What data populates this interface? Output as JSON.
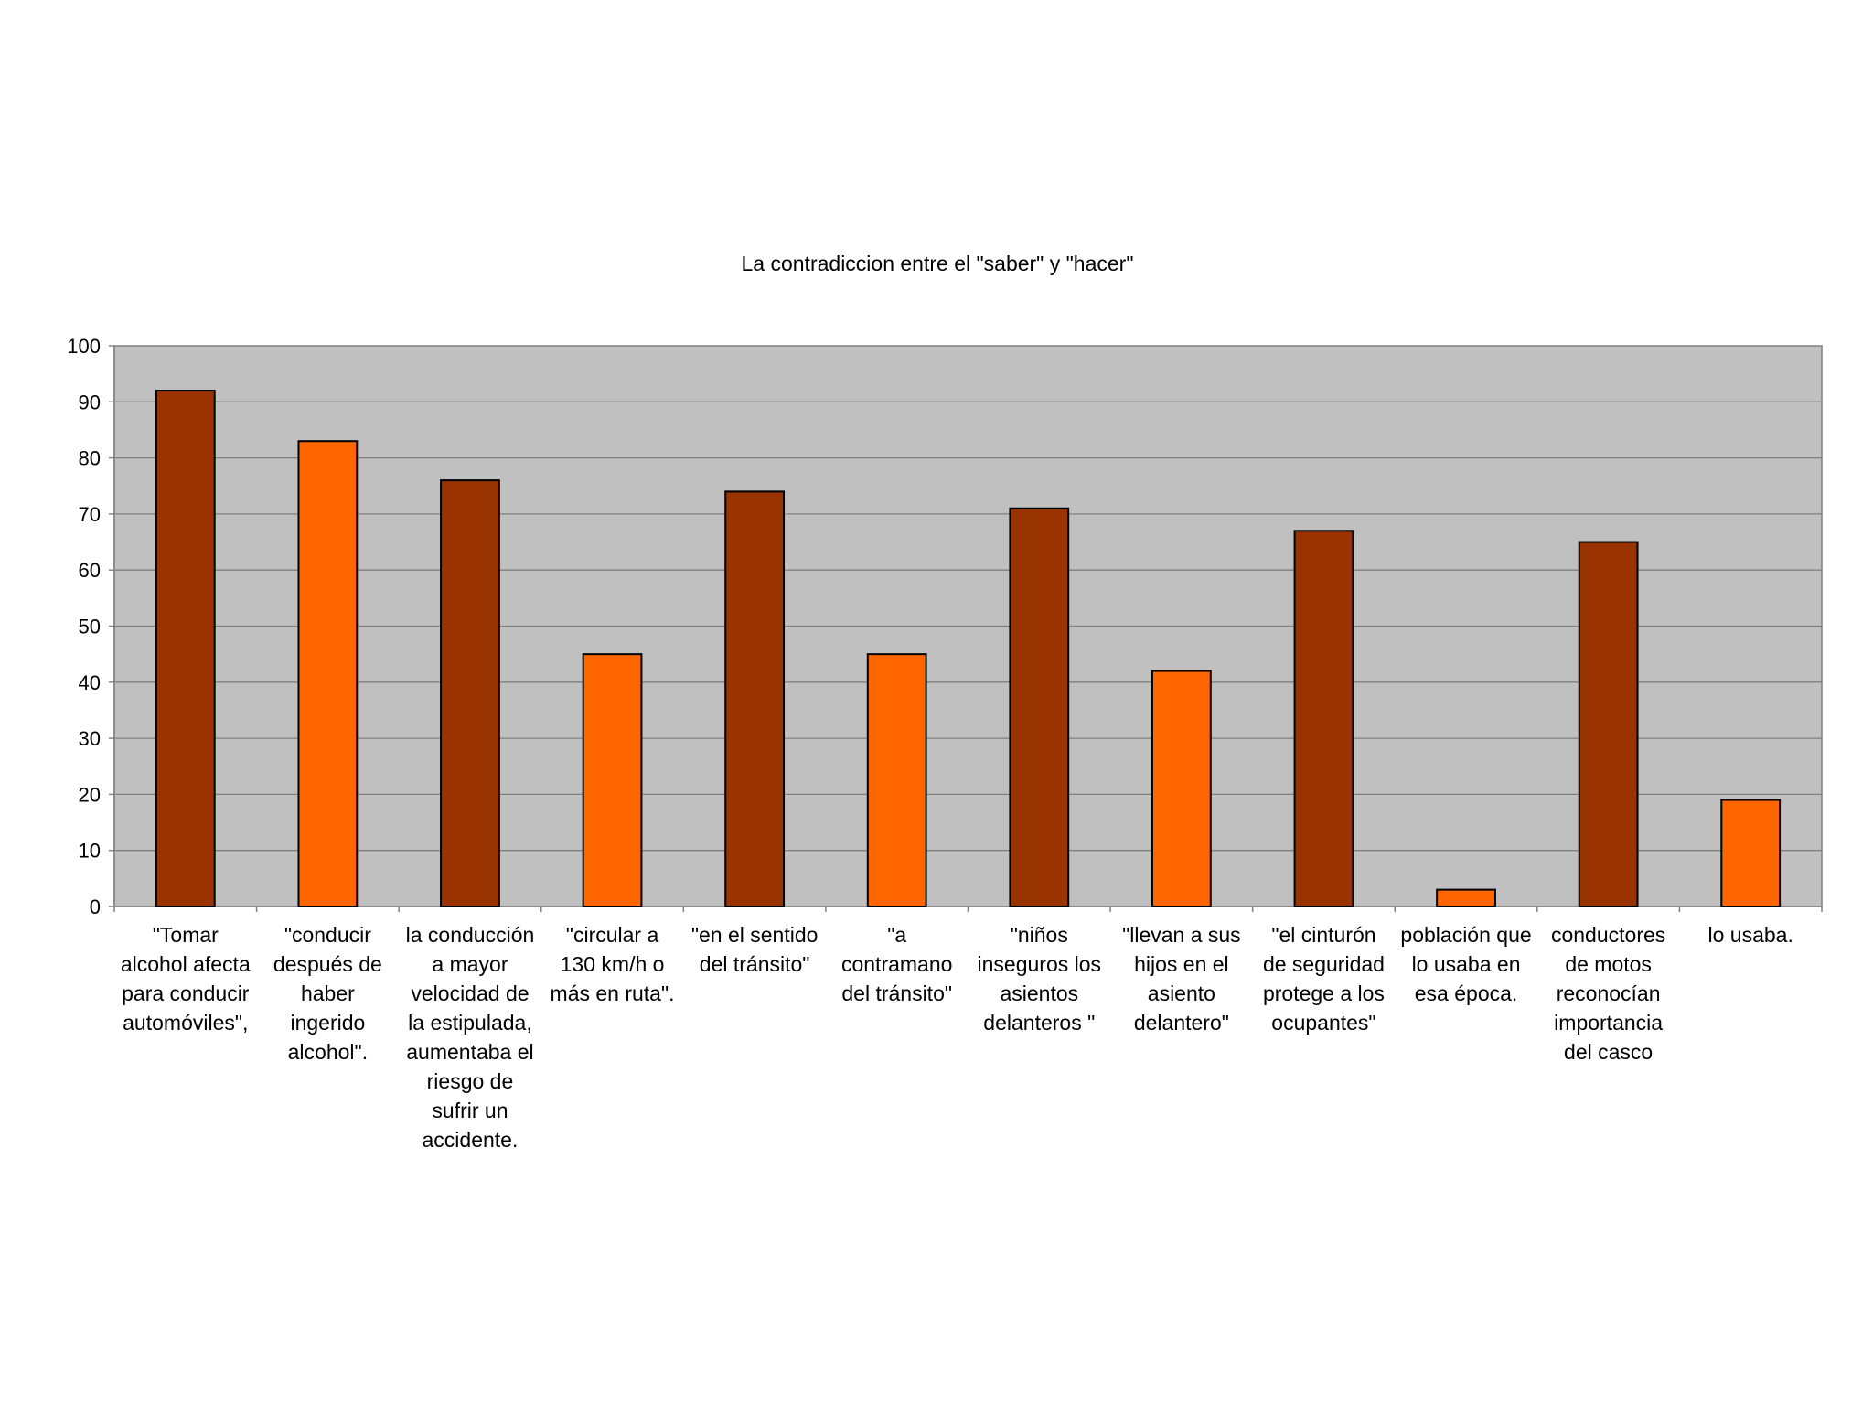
{
  "chart_data": {
    "type": "bar",
    "title": "La contradiccion entre el \"saber\" y \"hacer\"",
    "xlabel": "",
    "ylabel": "",
    "ylim": [
      0,
      100
    ],
    "yticks": [
      "0",
      "10",
      "20",
      "30",
      "40",
      "50",
      "60",
      "70",
      "80",
      "90",
      "100"
    ],
    "grid": true,
    "legend": "none",
    "categories": [
      [
        "\"Tomar",
        "alcohol afecta",
        "para conducir",
        "automóviles\","
      ],
      [
        "\"conducir",
        "después de",
        "haber",
        "ingerido",
        "alcohol\"."
      ],
      [
        "la conducción",
        "a mayor",
        "velocidad de",
        "la estipulada,",
        "aumentaba el",
        "riesgo de",
        "sufrir un",
        "accidente."
      ],
      [
        "\"circular a",
        "130 km/h o",
        "más en ruta\"."
      ],
      [
        "\"en el sentido",
        "del tránsito\""
      ],
      [
        "\"a",
        "contramano",
        "del tránsito\""
      ],
      [
        "\"niños",
        "inseguros los",
        "asientos",
        "delanteros \""
      ],
      [
        "\"llevan a sus",
        "hijos en el",
        "asiento",
        "delantero\""
      ],
      [
        "\"el cinturón",
        "de seguridad",
        "protege a los",
        "ocupantes\""
      ],
      [
        "población que",
        "lo usaba en",
        "esa época."
      ],
      [
        "conductores",
        "de motos",
        "reconocían",
        "importancia",
        "del casco"
      ],
      [
        "lo usaba."
      ]
    ],
    "values": [
      92,
      83,
      76,
      45,
      74,
      45,
      71,
      42,
      67,
      3,
      65,
      19
    ],
    "bar_colors": [
      "#993300",
      "#ff6600",
      "#993300",
      "#ff6600",
      "#993300",
      "#ff6600",
      "#993300",
      "#ff6600",
      "#993300",
      "#ff6600",
      "#993300",
      "#ff6600"
    ],
    "colors": {
      "plot_background": "#c0c0c0",
      "gridline": "#808080",
      "dark_bar": "#993300",
      "light_bar": "#ff6600",
      "bar_outline": "#000000"
    }
  }
}
